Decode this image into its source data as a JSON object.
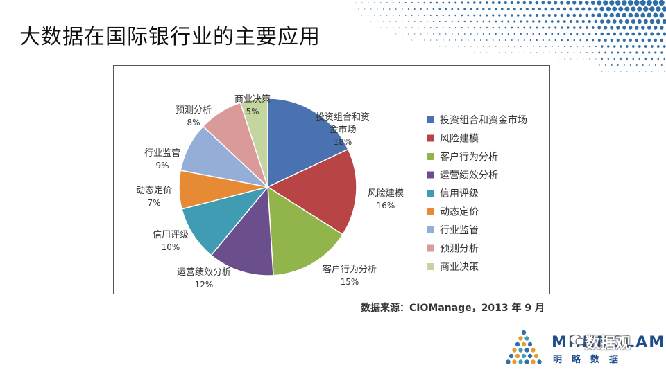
{
  "slide": {
    "title": "大数据在国际银行业的主要应用",
    "source": "数据来源：CIOManage，2013 年 9 月"
  },
  "logo": {
    "brand": "MININGLAMP",
    "tagline": "明略数据",
    "watermark": "数据观"
  },
  "colors": {
    "dots": "#2f6ea6",
    "frame": "#555555"
  },
  "chart_data": {
    "type": "pie",
    "title": "",
    "legend_position": "right",
    "slices": [
      {
        "label": "投资组合和资金市场",
        "short_label": "投资组合和资金市场",
        "value": 18,
        "pct_label": "18%",
        "color": "#4a72b0"
      },
      {
        "label": "风险建模",
        "short_label": "风险建模",
        "value": 16,
        "pct_label": "16%",
        "color": "#b84446"
      },
      {
        "label": "客户行为分析",
        "short_label": "客户行为分析",
        "value": 15,
        "pct_label": "15%",
        "color": "#91b54b"
      },
      {
        "label": "运营绩效分析",
        "short_label": "运营绩效分析",
        "value": 12,
        "pct_label": "12%",
        "color": "#6b4f8d"
      },
      {
        "label": "信用评级",
        "short_label": "信用评级",
        "value": 10,
        "pct_label": "10%",
        "color": "#3f9cb2"
      },
      {
        "label": "动态定价",
        "short_label": "动态定价",
        "value": 7,
        "pct_label": "7%",
        "color": "#e68a35"
      },
      {
        "label": "行业监管",
        "short_label": "行业监管",
        "value": 9,
        "pct_label": "9%",
        "color": "#94aed7"
      },
      {
        "label": "预测分析",
        "short_label": "预测分析",
        "value": 8,
        "pct_label": "8%",
        "color": "#db9a9a"
      },
      {
        "label": "商业决策",
        "short_label": "商业决策",
        "value": 5,
        "pct_label": "5%",
        "color": "#c4d59f"
      }
    ]
  }
}
